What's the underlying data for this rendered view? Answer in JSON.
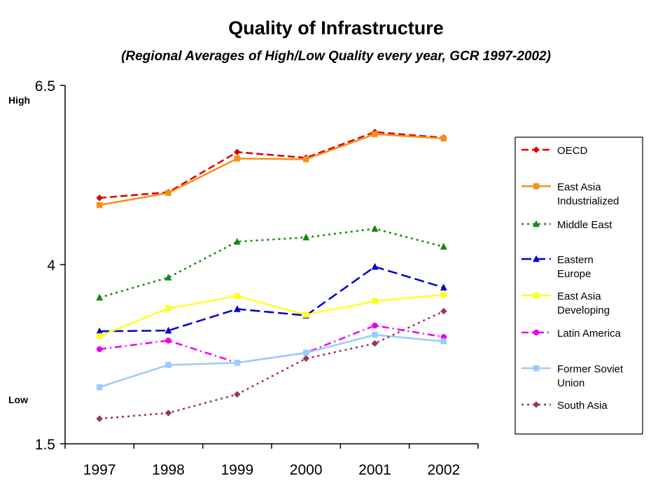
{
  "chart_data": {
    "type": "line",
    "title": "Quality of Infrastructure",
    "subtitle": "(Regional Averages of High/Low Quality every year, GCR 1997-2002)",
    "high_label": "High",
    "low_label": "Low",
    "xlabel": "",
    "ylabel": "",
    "categories": [
      "1997",
      "1998",
      "1999",
      "2000",
      "2001",
      "2002"
    ],
    "ylim": [
      1.5,
      6.5
    ],
    "y_ticks": [
      1.5,
      4,
      6.5
    ],
    "y_tick_labels": [
      "1.5",
      "4",
      "6.5"
    ],
    "grid": false,
    "legend_position": "right",
    "series": [
      {
        "name": "OECD",
        "legend_lines": [
          "OECD"
        ],
        "color": "#dd0000",
        "dash": "dashed",
        "marker": "diamond",
        "values": [
          4.93,
          5.01,
          5.57,
          5.49,
          5.85,
          5.77
        ]
      },
      {
        "name": "East Asia Industrialized",
        "legend_lines": [
          "East Asia",
          "Industrialized"
        ],
        "color": "#f39018",
        "dash": "solid",
        "marker": "square",
        "values": [
          4.83,
          5.0,
          5.48,
          5.47,
          5.82,
          5.76
        ]
      },
      {
        "name": "Middle East",
        "legend_lines": [
          "Middle East"
        ],
        "color": "#118811",
        "dash": "dotted",
        "marker": "triangle",
        "values": [
          3.54,
          3.82,
          4.32,
          4.38,
          4.5,
          4.25
        ]
      },
      {
        "name": "Eastern Europe",
        "legend_lines": [
          "Eastern",
          "Europe"
        ],
        "color": "#0000cc",
        "dash": "dashed-long",
        "marker": "triangle",
        "values": [
          3.07,
          3.08,
          3.38,
          3.29,
          3.97,
          3.68
        ]
      },
      {
        "name": "East Asia Developing",
        "legend_lines": [
          "East Asia",
          "Developing"
        ],
        "color": "#ffff22",
        "dash": "solid",
        "marker": "square",
        "values": [
          3.0,
          3.39,
          3.56,
          3.3,
          3.49,
          3.58
        ]
      },
      {
        "name": "Latin America",
        "legend_lines": [
          "Latin America"
        ],
        "color": "#ee00ee",
        "dash": "dashdot",
        "marker": "circle",
        "values": [
          2.82,
          2.94,
          2.63,
          2.77,
          3.15,
          2.99
        ]
      },
      {
        "name": "Former Soviet Union",
        "legend_lines": [
          "Former Soviet",
          "Union"
        ],
        "color": "#99ccff",
        "dash": "solid",
        "marker": "square",
        "values": [
          2.29,
          2.6,
          2.63,
          2.77,
          3.02,
          2.93
        ]
      },
      {
        "name": "South Asia",
        "legend_lines": [
          "South Asia"
        ],
        "color": "#993366",
        "dash": "dotted",
        "marker": "diamond",
        "values": [
          1.85,
          1.93,
          2.19,
          2.69,
          2.9,
          3.35
        ]
      }
    ]
  }
}
